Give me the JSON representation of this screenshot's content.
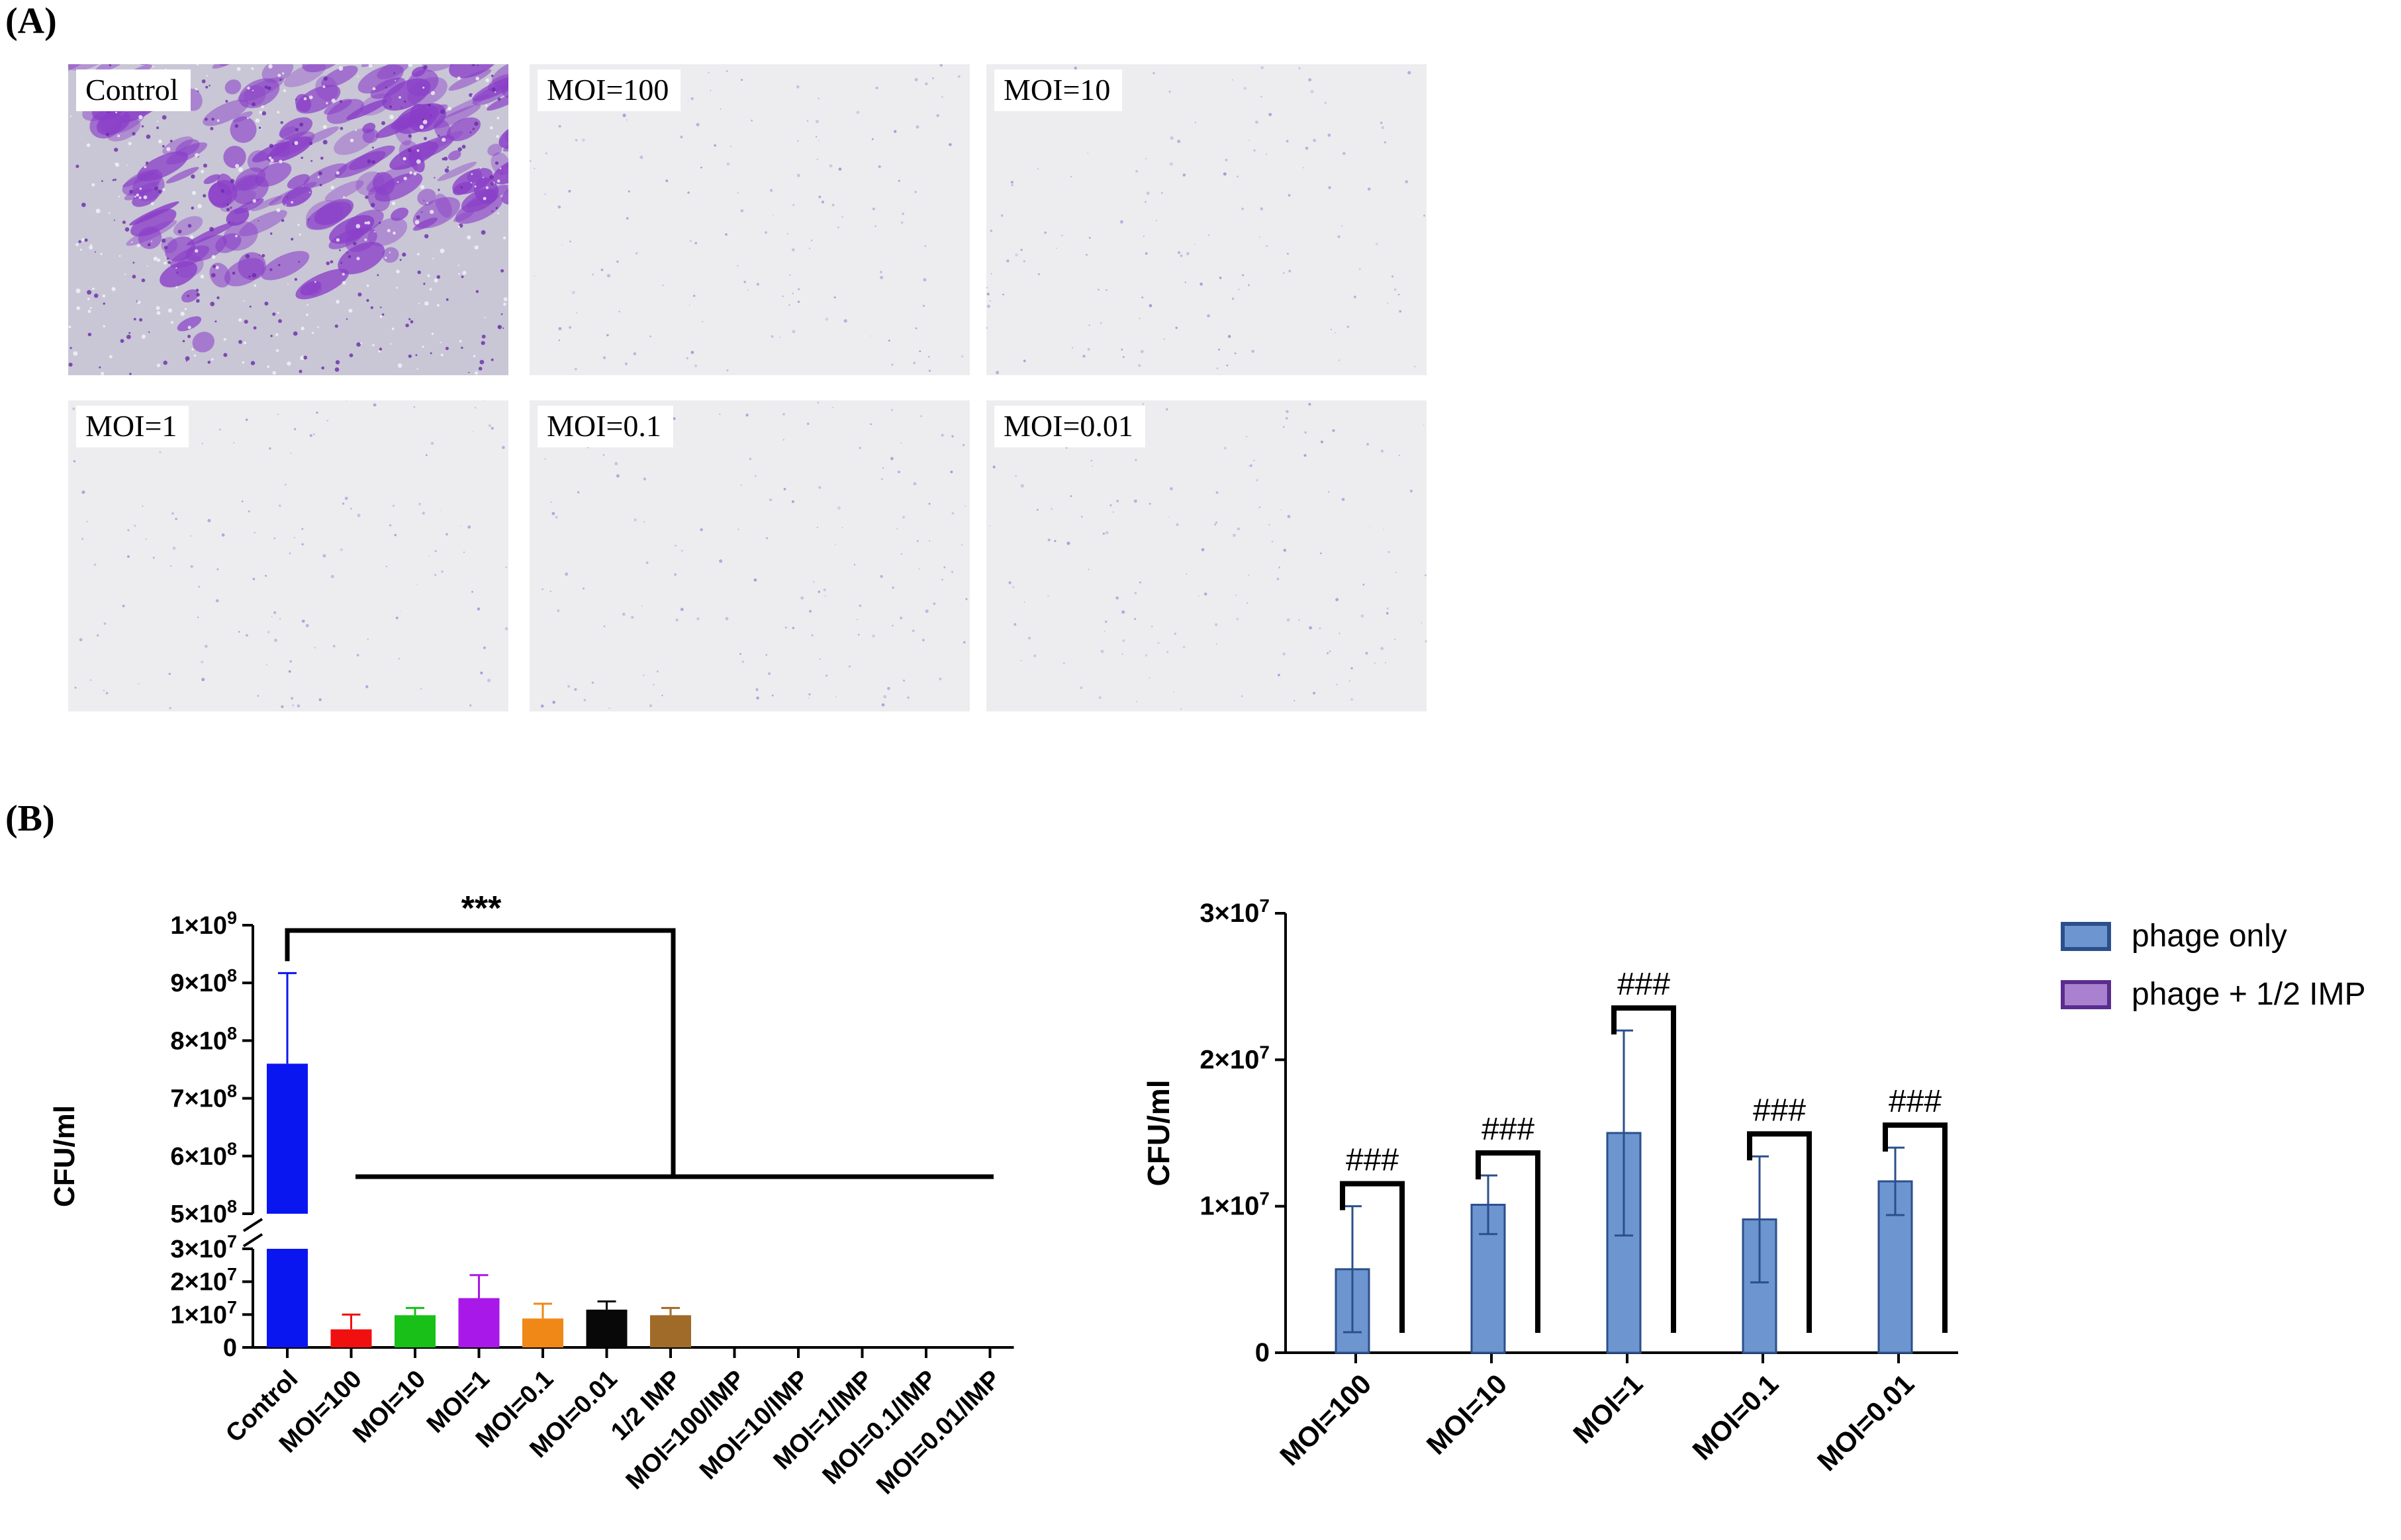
{
  "panel_a": {
    "label": "(A)",
    "images": [
      {
        "label": "Control",
        "stain": "heavy"
      },
      {
        "label": "MOI=100",
        "stain": "sparse"
      },
      {
        "label": "MOI=10",
        "stain": "sparse"
      },
      {
        "label": "MOI=1",
        "stain": "sparse"
      },
      {
        "label": "MOI=0.1",
        "stain": "sparse"
      },
      {
        "label": "MOI=0.01",
        "stain": "sparse"
      }
    ]
  },
  "panel_b": {
    "label": "(B)"
  },
  "chart_data": [
    {
      "type": "bar",
      "ylabel": "CFU/ml",
      "y_axis_break": true,
      "lower_ticks": [
        "0",
        "1×10⁷",
        "2×10⁷",
        "3×10⁷"
      ],
      "upper_ticks": [
        "5×10⁸",
        "6×10⁸",
        "7×10⁸",
        "8×10⁸",
        "9×10⁸",
        "1×10⁹"
      ],
      "categories": [
        "Control",
        "MOI=100",
        "MOI=10",
        "MOI=1",
        "MOI=0.1",
        "MOI=0.01",
        "1/2 IMP",
        "MOI=100/IMP",
        "MOI=10/IMP",
        "MOI=1/IMP",
        "MOI=0.1/IMP",
        "MOI=0.01/IMP"
      ],
      "values": [
        760000000,
        5500000,
        9800000,
        15000000,
        8800000,
        11500000,
        9800000,
        0,
        0,
        0,
        0,
        0
      ],
      "errors": [
        157000000,
        4500000,
        2200000,
        7000000,
        4500000,
        2500000,
        2200000,
        0,
        0,
        0,
        0,
        0
      ],
      "colors": [
        "#0a16f0",
        "#f01010",
        "#18c018",
        "#a818e8",
        "#f08818",
        "#080808",
        "#a06a28",
        "#000000",
        "#000000",
        "#000000",
        "#000000",
        "#000000"
      ],
      "significance": "***"
    },
    {
      "type": "bar",
      "ylabel": "CFU/ml",
      "ylim": [
        0,
        30000000
      ],
      "yticks": [
        "0",
        "1×10⁷",
        "2×10⁷",
        "3×10⁷"
      ],
      "categories": [
        "MOI=100",
        "MOI=10",
        "MOI=1",
        "MOI=0.1",
        "MOI=0.01"
      ],
      "series": [
        {
          "name": "phage only",
          "color": "#6d95cf",
          "edge": "#2c4f8c",
          "values": [
            5700000,
            10100000,
            15000000,
            9100000,
            11700000
          ],
          "errors": [
            4300000,
            2000000,
            7000000,
            4300000,
            2300000
          ]
        },
        {
          "name": "phage + 1/2 IMP",
          "color": "#a982cf",
          "edge": "#5a2d8f",
          "values": [
            0,
            0,
            0,
            0,
            0
          ],
          "errors": [
            0,
            0,
            0,
            0,
            0
          ]
        }
      ],
      "significance": [
        "###",
        "###",
        "###",
        "###",
        "###"
      ]
    }
  ]
}
